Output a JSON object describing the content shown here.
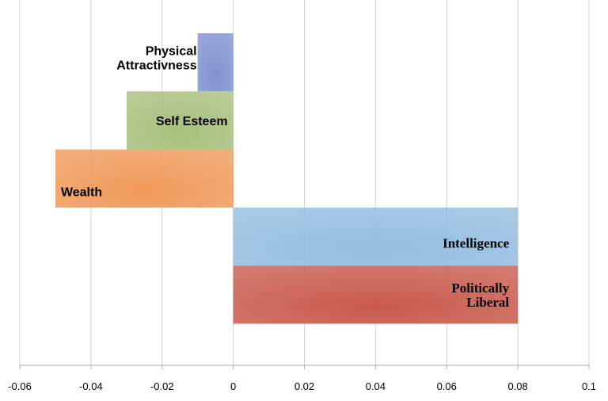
{
  "chart_data": {
    "type": "bar",
    "orientation": "horizontal",
    "title": "",
    "xlabel": "",
    "ylabel": "",
    "xlim": [
      -0.06,
      0.1
    ],
    "xticks": [
      "-0.06",
      "-0.04",
      "-0.02",
      "0",
      "0.02",
      "0.04",
      "0.06",
      "0.08",
      "0.1"
    ],
    "grid": "vertical",
    "categories": [
      "Physical Attractivness",
      "Self Esteem",
      "Wealth",
      "Intelligence",
      "Politically Liberal"
    ],
    "labels": [
      [
        "Physical",
        "Attractivness"
      ],
      [
        "Self Esteem"
      ],
      [
        "Wealth"
      ],
      [
        "Intelligence"
      ],
      [
        "Politically",
        "Liberal"
      ]
    ],
    "values": [
      -0.01,
      -0.03,
      -0.05,
      0.08,
      0.08
    ],
    "colors": [
      "#7f93cf",
      "#a7c07c",
      "#ef9a5a",
      "#93bde0",
      "#c95a4c"
    ]
  }
}
